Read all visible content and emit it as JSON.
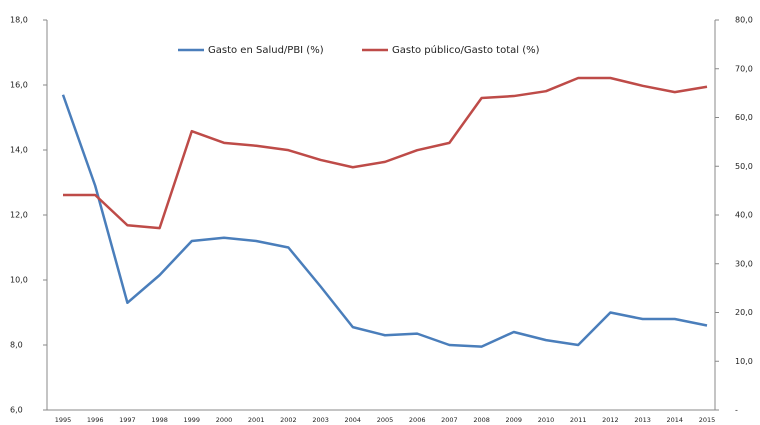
{
  "chart_data": {
    "type": "line",
    "categories": [
      "1995",
      "1996",
      "1997",
      "1998",
      "1999",
      "2000",
      "2001",
      "2002",
      "2003",
      "2004",
      "2005",
      "2006",
      "2007",
      "2008",
      "2009",
      "2010",
      "2011",
      "2012",
      "2013",
      "2014",
      "2015"
    ],
    "series": [
      {
        "name": "Gasto en Salud/PBI (%)",
        "color": "#4a7ebb",
        "axis": "y",
        "values": [
          15.7,
          12.9,
          9.3,
          10.15,
          11.2,
          11.3,
          11.2,
          11.0,
          9.8,
          8.55,
          8.3,
          8.35,
          8.0,
          7.95,
          8.4,
          8.15,
          8.0,
          9.0,
          8.8,
          8.8,
          8.6
        ]
      },
      {
        "name": "Gasto público/Gasto total (%)",
        "color": "#be4b48",
        "axis": "y2",
        "values": [
          44.1,
          44.1,
          37.9,
          37.3,
          57.2,
          54.8,
          54.2,
          53.3,
          51.3,
          49.8,
          50.9,
          53.3,
          54.8,
          64.0,
          64.4,
          65.4,
          68.1,
          68.1,
          66.5,
          65.2,
          66.3
        ]
      }
    ],
    "ylim": [
      6,
      18
    ],
    "yticks": [
      {
        "value": 6,
        "label": "6,0"
      },
      {
        "value": 8,
        "label": "8,0"
      },
      {
        "value": 10,
        "label": "10,0"
      },
      {
        "value": 12,
        "label": "12,0"
      },
      {
        "value": 14,
        "label": "14,0"
      },
      {
        "value": 16,
        "label": "16,0"
      },
      {
        "value": 18,
        "label": "18,0"
      }
    ],
    "y2lim": [
      0,
      80
    ],
    "y2ticks": [
      {
        "value": 0,
        "label": "-"
      },
      {
        "value": 10,
        "label": "10,0"
      },
      {
        "value": 20,
        "label": "20,0"
      },
      {
        "value": 30,
        "label": "30,0"
      },
      {
        "value": 40,
        "label": "40,0"
      },
      {
        "value": 50,
        "label": "50,0"
      },
      {
        "value": 60,
        "label": "60,0"
      },
      {
        "value": 70,
        "label": "70,0"
      },
      {
        "value": 80,
        "label": "80,0"
      }
    ],
    "legend": "top"
  }
}
